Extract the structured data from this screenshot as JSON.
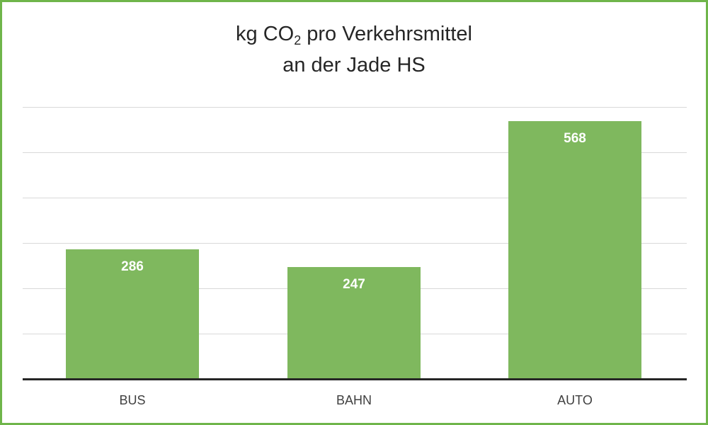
{
  "chart_data": {
    "type": "bar",
    "title": "kg CO2 pro Verkehrsmittel an der Jade HS",
    "title_line1_prefix": "kg CO",
    "title_line1_sub": "2",
    "title_line1_suffix": " pro Verkehrsmittel",
    "title_line2": "an der Jade HS",
    "categories": [
      "BUS",
      "BAHN",
      "AUTO"
    ],
    "values": [
      286,
      247,
      568
    ],
    "value_labels": [
      "286",
      "247",
      "568"
    ],
    "xlabel": "",
    "ylabel": "",
    "ylim": [
      0,
      600
    ],
    "grid": true,
    "gridlines": [
      100,
      200,
      300,
      400,
      500,
      600
    ],
    "legend": null,
    "colors": {
      "bar": "#7fb85e",
      "border": "#6fb54a",
      "grid": "#d9d9d9",
      "axis": "#262626",
      "label": "#ffffff"
    }
  }
}
